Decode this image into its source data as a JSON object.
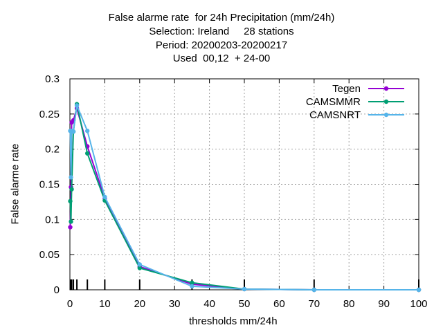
{
  "title_lines": [
    "False alarme rate  for 24h Precipitation (mm/24h)",
    "Selection: Ireland     28 stations",
    "Period: 20200203-20200217",
    "Used  00,12  + 24-00"
  ],
  "chart_data": {
    "type": "line",
    "xlabel": "thresholds mm/24h",
    "ylabel": "False alarme rate",
    "xlim": [
      0,
      100
    ],
    "ylim": [
      0,
      0.3
    ],
    "x_ticks": [
      "0",
      "10",
      "20",
      "30",
      "40",
      "50",
      "60",
      "70",
      "80",
      "90",
      "100"
    ],
    "y_ticks": [
      "0",
      "0.05",
      "0.1",
      "0.15",
      "0.2",
      "0.25",
      "0.3"
    ],
    "grid": true,
    "legend_position": "top-right",
    "threshold_markers": [
      0.1,
      0.3,
      0.5,
      1,
      2,
      5,
      10,
      20,
      35,
      50,
      70,
      100
    ],
    "series": [
      {
        "name": "Tegen",
        "color": "#9400d3",
        "points": [
          [
            0.1,
            0.089
          ],
          [
            0.3,
            0.146
          ],
          [
            0.5,
            0.238
          ],
          [
            1,
            0.241
          ],
          [
            2,
            0.258
          ],
          [
            5,
            0.204
          ],
          [
            10,
            0.13
          ],
          [
            20,
            0.033
          ],
          [
            35,
            0.008
          ],
          [
            50,
            0.001
          ],
          [
            70,
            0.0
          ],
          [
            100,
            0.0
          ]
        ]
      },
      {
        "name": "CAMSMMR",
        "color": "#009e73",
        "points": [
          [
            0.1,
            0.126
          ],
          [
            0.3,
            0.097
          ],
          [
            0.5,
            0.143
          ],
          [
            1,
            0.225
          ],
          [
            2,
            0.264
          ],
          [
            5,
            0.194
          ],
          [
            10,
            0.127
          ],
          [
            20,
            0.031
          ],
          [
            35,
            0.01
          ],
          [
            50,
            0.001
          ],
          [
            70,
            0.0
          ],
          [
            100,
            0.0
          ]
        ]
      },
      {
        "name": "CAMSNRT",
        "color": "#56b4e9",
        "points": [
          [
            0.1,
            0.226
          ],
          [
            0.3,
            0.16
          ],
          [
            0.5,
            0.226
          ],
          [
            1,
            0.225
          ],
          [
            2,
            0.262
          ],
          [
            5,
            0.226
          ],
          [
            10,
            0.132
          ],
          [
            20,
            0.036
          ],
          [
            35,
            0.005
          ],
          [
            50,
            0.001
          ],
          [
            70,
            0.0
          ],
          [
            100,
            0.0
          ]
        ]
      }
    ]
  }
}
